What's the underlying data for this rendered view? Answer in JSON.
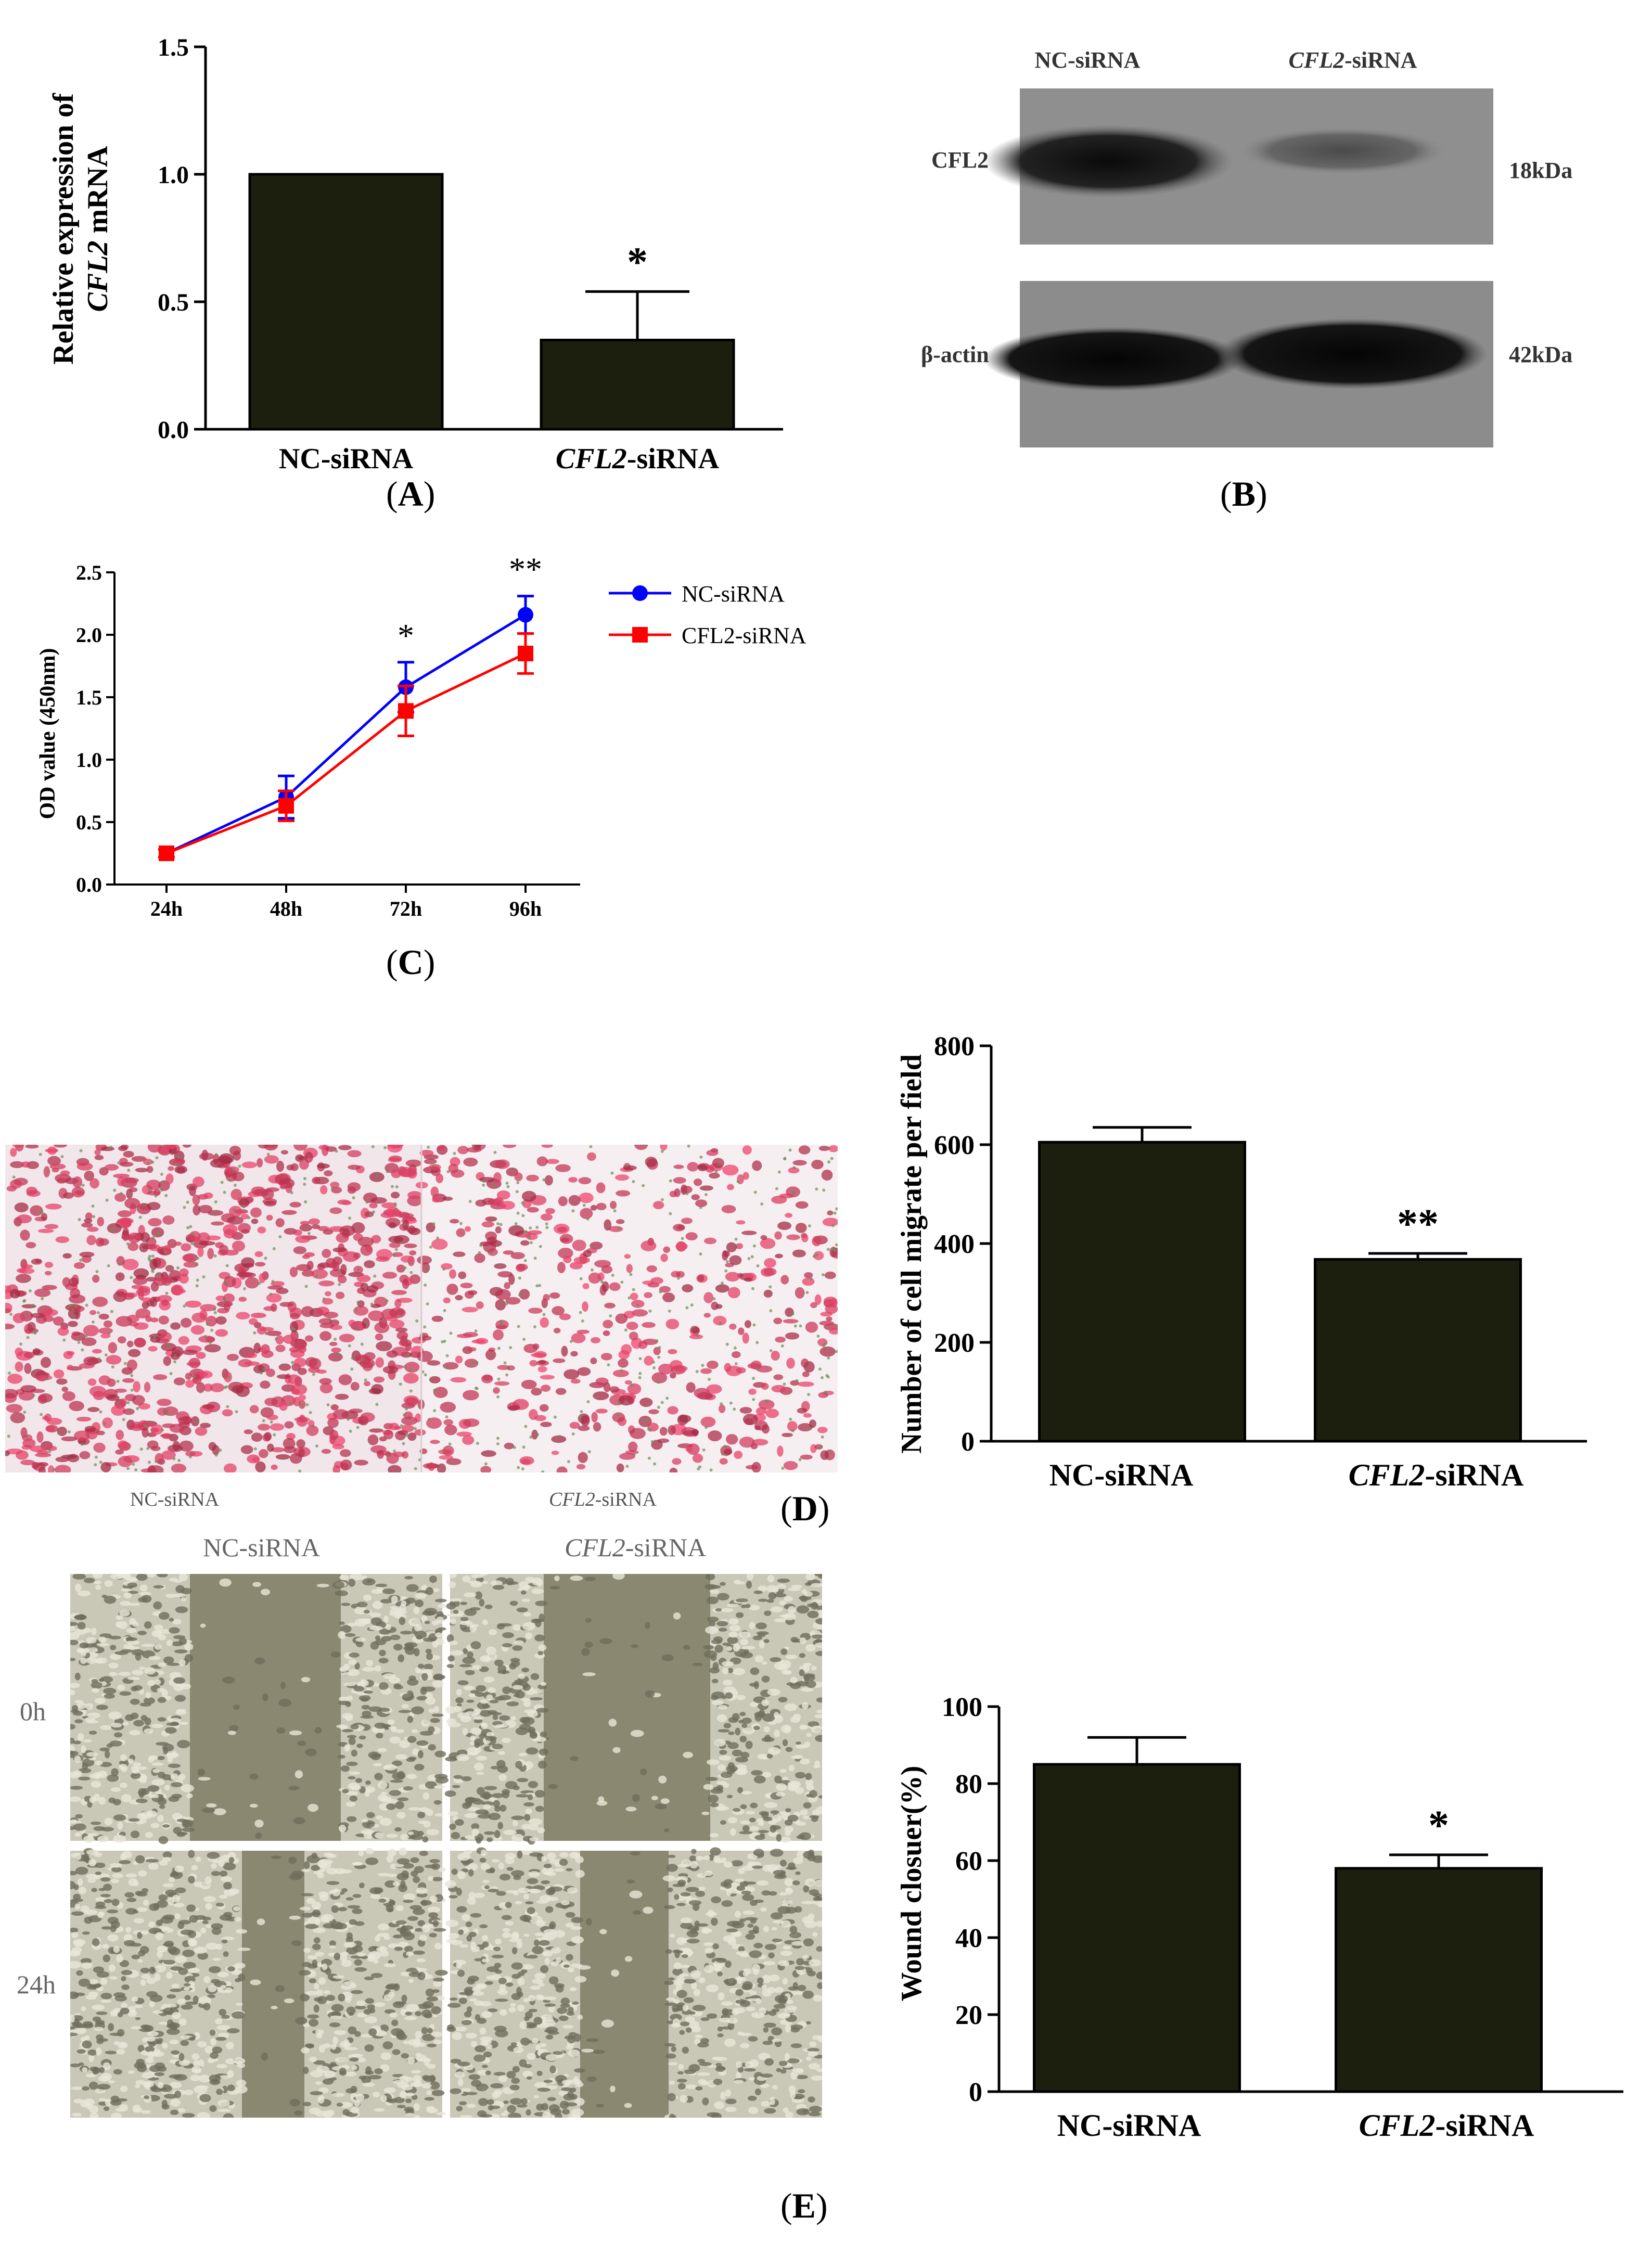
{
  "panels": {
    "A": "A",
    "B": "B",
    "C": "C",
    "D": "D",
    "E": "E"
  },
  "colors": {
    "bar_fill": "#1c1f0d",
    "nc_line": "#0000ff",
    "cfl2_line": "#ff0000"
  },
  "chart_data": [
    {
      "id": "A",
      "type": "bar",
      "ylabel_line1": "Relative expression of",
      "ylabel_line2_italic": "CFL2",
      "ylabel_line2_rest": " mRNA",
      "categories": [
        "NC-siRNA",
        "CFL2-siRNA"
      ],
      "category_italic_part": [
        "",
        "CFL2"
      ],
      "category_rest": [
        "NC-siRNA",
        "-siRNA"
      ],
      "values": [
        1.0,
        0.35
      ],
      "errors": [
        0,
        0.19
      ],
      "significance": [
        "",
        "*"
      ],
      "ylim": [
        0,
        1.5
      ],
      "yticks": [
        "0.0",
        "0.5",
        "1.0",
        "1.5"
      ]
    },
    {
      "id": "C",
      "type": "line",
      "ylabel": "OD value (450nm)",
      "x": [
        "24h",
        "48h",
        "72h",
        "96h"
      ],
      "ylim": [
        0,
        2.5
      ],
      "yticks": [
        "0.0",
        "0.5",
        "1.0",
        "1.5",
        "2.0",
        "2.5"
      ],
      "series": [
        {
          "name": "NC-siRNA",
          "values": [
            0.25,
            0.7,
            1.58,
            2.16
          ],
          "errors": [
            0.03,
            0.17,
            0.2,
            0.15
          ]
        },
        {
          "name": "CFL2-siRNA",
          "values": [
            0.25,
            0.63,
            1.39,
            1.85
          ],
          "errors": [
            0.03,
            0.12,
            0.2,
            0.16
          ]
        }
      ],
      "significance": [
        "",
        "",
        "*",
        "**"
      ],
      "legend": "top-right"
    },
    {
      "id": "D",
      "type": "bar",
      "ylabel": "Number of cell migrate per field",
      "categories": [
        "NC-siRNA",
        "CFL2-siRNA"
      ],
      "category_italic_part": [
        "",
        "CFL2"
      ],
      "category_rest": [
        "NC-siRNA",
        "-siRNA"
      ],
      "values": [
        605,
        368
      ],
      "errors": [
        30,
        12
      ],
      "significance": [
        "",
        "**"
      ],
      "ylim": [
        0,
        800
      ],
      "yticks": [
        "0",
        "200",
        "400",
        "600",
        "800"
      ]
    },
    {
      "id": "E",
      "type": "bar",
      "ylabel": "Wound closuer(%)",
      "categories": [
        "NC-siRNA",
        "CFL2-siRNA"
      ],
      "category_italic_part": [
        "",
        "CFL2"
      ],
      "category_rest": [
        "NC-siRNA",
        "-siRNA"
      ],
      "values": [
        85,
        58
      ],
      "errors": [
        7,
        3.5
      ],
      "significance": [
        "",
        "*"
      ],
      "ylim": [
        0,
        100
      ],
      "yticks": [
        "0",
        "20",
        "40",
        "60",
        "80",
        "100"
      ]
    }
  ],
  "blot": {
    "lane1": "NC-siRNA",
    "lane2_italic": "CFL2",
    "lane2_rest": "-siRNA",
    "row1_label": "CFL2",
    "row1_size": "18kDa",
    "row2_label": "β-actin",
    "row2_size": "42kDa"
  },
  "transwell": {
    "label1": "NC-siRNA",
    "label2_italic": "CFL2",
    "label2_rest": "-siRNA"
  },
  "wound": {
    "col1": "NC-siRNA",
    "col2_italic": "CFL2",
    "col2_rest": "-siRNA",
    "row1": "0h",
    "row2": "24h"
  }
}
